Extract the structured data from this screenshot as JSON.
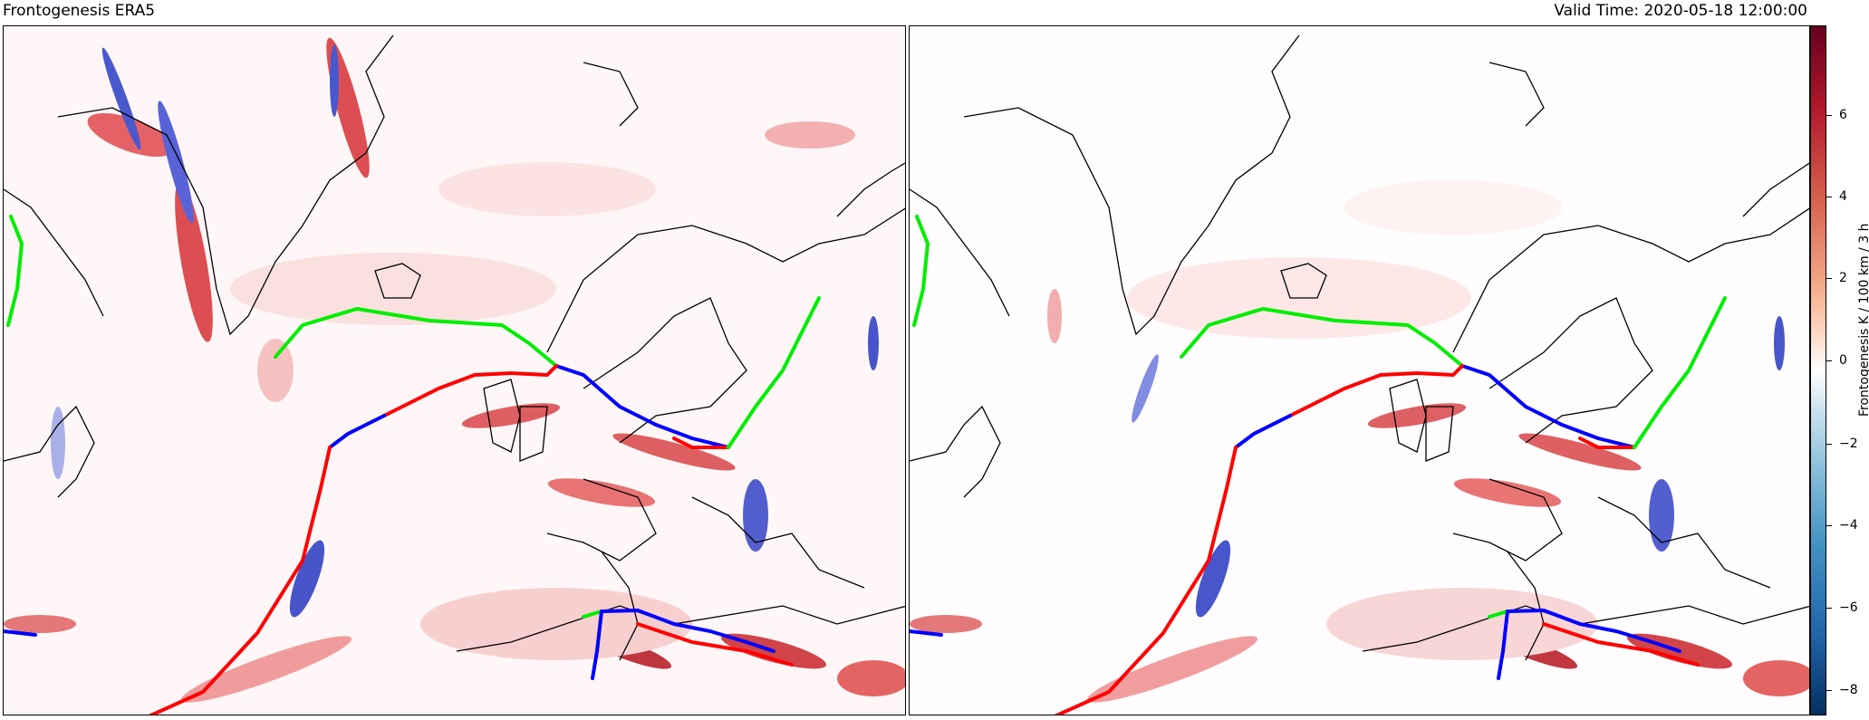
{
  "title_left": "Frontogenesis ERA5",
  "title_right": "Valid Time: 2020-05-18 12:00:00",
  "colorbar": {
    "label": "Frontogenesis K / 100 km / 3 h",
    "ticks": [
      "6",
      "4",
      "2",
      "0",
      "−2",
      "−4",
      "−6",
      "−8"
    ],
    "colormap": "RdBu_r",
    "range": [
      -9,
      9
    ]
  },
  "colors": {
    "cold_front": "#0000ff",
    "warm_front": "#ff0000",
    "occluded_front": "#00ee00",
    "coastline": "#000000"
  },
  "panels": [
    "left",
    "right"
  ]
}
